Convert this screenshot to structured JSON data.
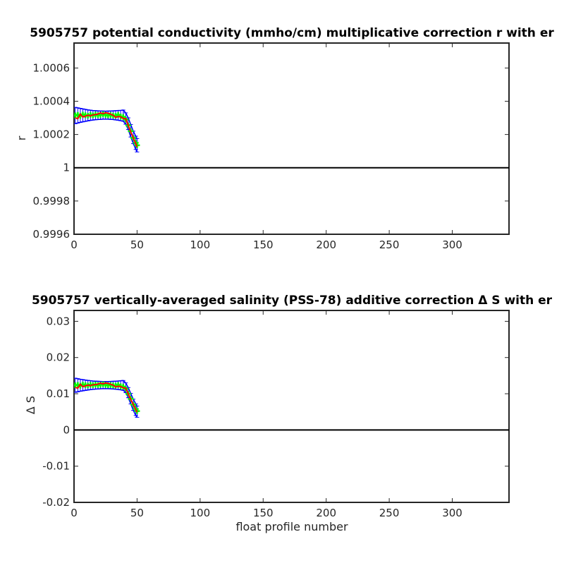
{
  "chart_data": [
    {
      "type": "line",
      "title": "5905757 potential conductivity (mmho/cm) multiplicative correction r with er",
      "xlabel": "",
      "ylabel": "r",
      "xlim": [
        0,
        345
      ],
      "ylim": [
        0.9996,
        1.00075
      ],
      "xticks": [
        0,
        50,
        100,
        150,
        200,
        250,
        300
      ],
      "xtick_labels": [
        "0",
        "50",
        "100",
        "150",
        "200",
        "250",
        "300"
      ],
      "yticks": [
        0.9996,
        0.9998,
        1.0,
        1.0002,
        1.0004,
        1.0006
      ],
      "ytick_labels": [
        "0.9996",
        "0.9998",
        "1",
        "1.0002",
        "1.0004",
        "1.0006"
      ],
      "grid": false,
      "reference_line": {
        "y": 1.0,
        "color": "#000000"
      },
      "series": [
        {
          "style": "errorbar",
          "color": "#0000ff",
          "x": [
            1,
            3,
            5,
            7,
            9,
            11,
            13,
            15,
            17,
            19,
            21,
            23,
            25,
            27,
            29,
            31,
            33,
            35,
            37,
            39,
            41,
            43,
            45,
            47,
            49,
            50
          ],
          "upper": [
            1.000363,
            1.00036,
            1.000357,
            1.000354,
            1.000351,
            1.000348,
            1.000346,
            1.000344,
            1.000343,
            1.000342,
            1.000341,
            1.000341,
            1.00034,
            1.000341,
            1.000341,
            1.000342,
            1.000343,
            1.000344,
            1.000345,
            1.000347,
            1.00033,
            1.0003,
            1.00026,
            1.00022,
            1.00019,
            1.000175
          ],
          "lower": [
            1.000265,
            1.000269,
            1.000273,
            1.000276,
            1.000279,
            1.000282,
            1.000285,
            1.000287,
            1.000289,
            1.00029,
            1.000291,
            1.000292,
            1.000292,
            1.000292,
            1.000291,
            1.00029,
            1.000288,
            1.000286,
            1.000283,
            1.00028,
            1.000262,
            1.00023,
            1.000185,
            1.000145,
            1.00011,
            1.000095
          ]
        },
        {
          "style": "markers",
          "color": "#00ff00",
          "x": [
            1,
            3,
            5,
            7,
            9,
            11,
            13,
            15,
            17,
            19,
            21,
            23,
            25,
            27,
            29,
            31,
            33,
            35,
            37,
            39,
            41,
            43,
            45,
            47,
            49,
            50
          ],
          "y": [
            1.000315,
            1.000318,
            1.000312,
            1.00032,
            1.000316,
            1.000313,
            1.000318,
            1.000315,
            1.00032,
            1.000316,
            1.000318,
            1.000322,
            1.000318,
            1.000315,
            1.000317,
            1.000314,
            1.000312,
            1.000318,
            1.000308,
            1.000306,
            1.00029,
            1.000255,
            1.00022,
            1.00018,
            1.00015,
            1.000135
          ]
        },
        {
          "style": "line",
          "color": "#ff0000",
          "x": [
            1,
            3,
            5,
            7,
            9,
            11,
            13,
            15,
            17,
            19,
            21,
            23,
            25,
            27,
            29,
            31,
            33,
            35,
            37,
            39,
            41,
            43,
            45,
            47,
            49,
            50
          ],
          "y": [
            1.0003,
            1.000295,
            1.000322,
            1.000305,
            1.00031,
            1.000316,
            1.000312,
            1.000318,
            1.00032,
            1.000323,
            1.00033,
            1.000325,
            1.000331,
            1.000328,
            1.000322,
            1.000316,
            1.000303,
            1.000308,
            1.000306,
            1.000297,
            1.000295,
            1.000255,
            1.000215,
            1.00018,
            1.000145,
            1.000125
          ]
        }
      ]
    },
    {
      "type": "line",
      "title": "5905757 vertically-averaged salinity (PSS-78) additive correction Δ S with er",
      "xlabel": "float profile number",
      "ylabel": "Δ S",
      "xlim": [
        0,
        345
      ],
      "ylim": [
        -0.02,
        0.033
      ],
      "xticks": [
        0,
        50,
        100,
        150,
        200,
        250,
        300
      ],
      "xtick_labels": [
        "0",
        "50",
        "100",
        "150",
        "200",
        "250",
        "300"
      ],
      "yticks": [
        -0.02,
        -0.01,
        0,
        0.01,
        0.02,
        0.03
      ],
      "ytick_labels": [
        "-0.02",
        "-0.01",
        "0",
        "0.01",
        "0.02",
        "0.03"
      ],
      "grid": false,
      "reference_line": {
        "y": 0,
        "color": "#000000"
      },
      "series": [
        {
          "style": "errorbar",
          "color": "#0000ff",
          "x": [
            1,
            3,
            5,
            7,
            9,
            11,
            13,
            15,
            17,
            19,
            21,
            23,
            25,
            27,
            29,
            31,
            33,
            35,
            37,
            39,
            41,
            43,
            45,
            47,
            49,
            50
          ],
          "upper": [
            0.0143,
            0.01415,
            0.014,
            0.0139,
            0.01378,
            0.01368,
            0.0136,
            0.01352,
            0.01347,
            0.01343,
            0.0134,
            0.01338,
            0.01337,
            0.01338,
            0.0134,
            0.01343,
            0.01347,
            0.01352,
            0.01358,
            0.01365,
            0.013,
            0.0117,
            0.0101,
            0.0085,
            0.0072,
            0.0066
          ],
          "lower": [
            0.0104,
            0.01055,
            0.0107,
            0.01082,
            0.01094,
            0.01104,
            0.01114,
            0.01122,
            0.01128,
            0.01133,
            0.01137,
            0.0114,
            0.0114,
            0.01139,
            0.01136,
            0.01132,
            0.01126,
            0.01118,
            0.01108,
            0.01096,
            0.0103,
            0.0089,
            0.0072,
            0.0054,
            0.004,
            0.0035
          ]
        },
        {
          "style": "markers",
          "color": "#00ff00",
          "x": [
            1,
            3,
            5,
            7,
            9,
            11,
            13,
            15,
            17,
            19,
            21,
            23,
            25,
            27,
            29,
            31,
            33,
            35,
            37,
            39,
            41,
            43,
            45,
            47,
            49,
            50
          ],
          "y": [
            0.01235,
            0.01245,
            0.01222,
            0.01255,
            0.0124,
            0.01228,
            0.01248,
            0.01236,
            0.01255,
            0.0124,
            0.01248,
            0.01262,
            0.01246,
            0.01235,
            0.01243,
            0.0123,
            0.01222,
            0.01245,
            0.01205,
            0.01198,
            0.0114,
            0.01,
            0.0086,
            0.007,
            0.0058,
            0.0052
          ]
        },
        {
          "style": "line",
          "color": "#ff0000",
          "x": [
            1,
            3,
            5,
            7,
            9,
            11,
            13,
            15,
            17,
            19,
            21,
            23,
            25,
            27,
            29,
            31,
            33,
            35,
            37,
            39,
            41,
            43,
            45,
            47,
            49,
            50
          ],
          "y": [
            0.01175,
            0.01155,
            0.0126,
            0.01195,
            0.01215,
            0.01238,
            0.01222,
            0.01247,
            0.01255,
            0.01265,
            0.01292,
            0.01272,
            0.01297,
            0.01285,
            0.01262,
            0.01238,
            0.01187,
            0.01207,
            0.01198,
            0.01163,
            0.01155,
            0.01,
            0.0084,
            0.007,
            0.00565,
            0.0049
          ]
        }
      ]
    }
  ]
}
